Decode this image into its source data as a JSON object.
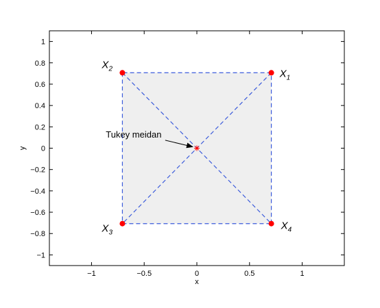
{
  "chart_data": {
    "type": "scatter",
    "xlabel": "x",
    "ylabel": "y",
    "xlim": [
      -1.4,
      1.4
    ],
    "ylim": [
      -1.1,
      1.1
    ],
    "x_ticks": [
      -1,
      -0.5,
      0,
      0.5,
      1
    ],
    "x_tick_labels": [
      "−1",
      "−0.5",
      "0",
      "0.5",
      "1"
    ],
    "y_ticks": [
      1,
      0.8,
      0.6,
      0.4,
      0.2,
      0,
      -0.2,
      -0.4,
      -0.6,
      -0.8,
      -1
    ],
    "y_tick_labels": [
      "1",
      "0.8",
      "0.6",
      "0.4",
      "0.2",
      "0",
      "−0.2",
      "−0.4",
      "−0.6",
      "−0.8",
      "−1"
    ],
    "grid": false,
    "points": [
      {
        "label": "X",
        "sub": "1",
        "x": 0.707,
        "y": 0.707
      },
      {
        "label": "X",
        "sub": "2",
        "x": -0.707,
        "y": 0.707
      },
      {
        "label": "X",
        "sub": "3",
        "x": -0.707,
        "y": -0.707
      },
      {
        "label": "X",
        "sub": "4",
        "x": 0.707,
        "y": -0.707
      }
    ],
    "square": [
      [
        0.707,
        0.707
      ],
      [
        -0.707,
        0.707
      ],
      [
        -0.707,
        -0.707
      ],
      [
        0.707,
        -0.707
      ]
    ],
    "median": {
      "x": 0,
      "y": 0
    },
    "annotation": {
      "text": "Tukey meidan",
      "x": -0.6,
      "y": 0.1
    },
    "colors": {
      "points": "#ff0000",
      "median": "#ff0000",
      "dashed_lines": "#3b5bdb",
      "fill": "#efefef",
      "arrow": "#000000"
    }
  }
}
